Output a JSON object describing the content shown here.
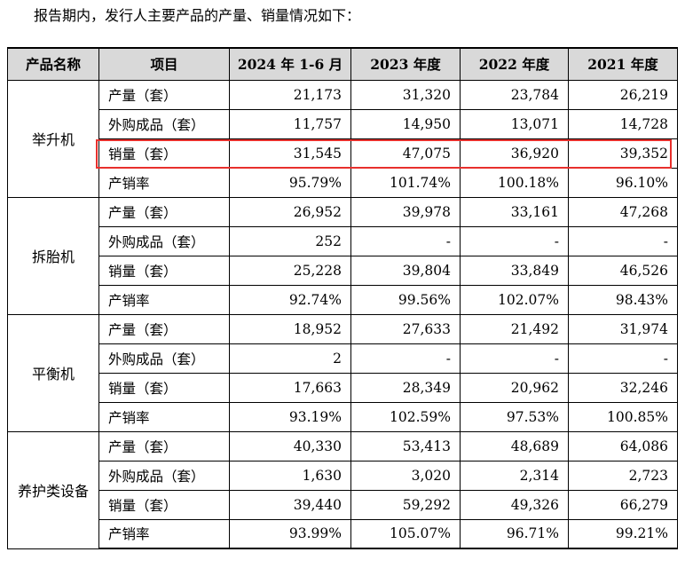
{
  "intro_text": "报告期内，发行人主要产品的产量、销量情况如下：",
  "table": {
    "headers": [
      "产品名称",
      "项目",
      "2024 年 1-6 月",
      "2023 年度",
      "2022 年度",
      "2021 年度"
    ],
    "groups": [
      {
        "product": "举升机",
        "rows": [
          {
            "item": "产量（套）",
            "values": [
              "21,173",
              "31,320",
              "23,784",
              "26,219"
            ]
          },
          {
            "item": "外购成品（套）",
            "values": [
              "11,757",
              "14,950",
              "13,071",
              "14,728"
            ]
          },
          {
            "item": "销量（套）",
            "values": [
              "31,545",
              "47,075",
              "36,920",
              "39,352"
            ]
          },
          {
            "item": "产销率",
            "values": [
              "95.79%",
              "101.74%",
              "100.18%",
              "96.10%"
            ]
          }
        ]
      },
      {
        "product": "拆胎机",
        "rows": [
          {
            "item": "产量（套）",
            "values": [
              "26,952",
              "39,978",
              "33,161",
              "47,268"
            ]
          },
          {
            "item": "外购成品（套）",
            "values": [
              "252",
              "-",
              "-",
              "-"
            ]
          },
          {
            "item": "销量（套）",
            "values": [
              "25,228",
              "39,804",
              "33,849",
              "46,526"
            ]
          },
          {
            "item": "产销率",
            "values": [
              "92.74%",
              "99.56%",
              "102.07%",
              "98.43%"
            ]
          }
        ]
      },
      {
        "product": "平衡机",
        "rows": [
          {
            "item": "产量（套）",
            "values": [
              "18,952",
              "27,633",
              "21,492",
              "31,974"
            ]
          },
          {
            "item": "外购成品（套）",
            "values": [
              "2",
              "-",
              "-",
              "-"
            ]
          },
          {
            "item": "销量（套）",
            "values": [
              "17,663",
              "28,349",
              "20,962",
              "32,246"
            ]
          },
          {
            "item": "产销率",
            "values": [
              "93.19%",
              "102.59%",
              "97.53%",
              "100.85%"
            ]
          }
        ]
      },
      {
        "product": "养护类设备",
        "rows": [
          {
            "item": "产量（套）",
            "values": [
              "40,330",
              "53,413",
              "48,689",
              "64,086"
            ]
          },
          {
            "item": "外购成品（套）",
            "values": [
              "1,630",
              "3,020",
              "2,314",
              "2,723"
            ]
          },
          {
            "item": "销量（套）",
            "values": [
              "39,440",
              "59,292",
              "49,326",
              "66,279"
            ]
          },
          {
            "item": "产销率",
            "values": [
              "93.99%",
              "105.07%",
              "96.71%",
              "99.21%"
            ]
          }
        ]
      }
    ]
  },
  "colors": {
    "highlight_border": "#e8302c",
    "header_bg": "#d9d9d9"
  }
}
